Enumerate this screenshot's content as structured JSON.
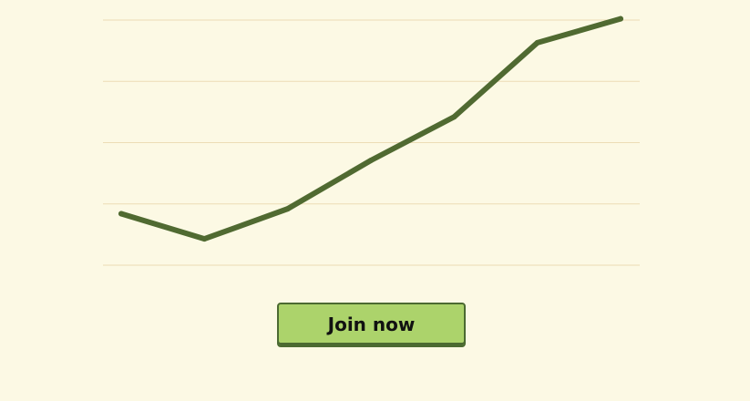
{
  "chart_data": {
    "type": "line",
    "x": [
      1,
      2,
      3,
      4,
      5,
      6,
      7
    ],
    "series": [
      {
        "values": [
          0.84,
          0.43,
          0.92,
          1.71,
          2.42,
          3.63,
          4.02
        ]
      }
    ],
    "ylim": [
      0,
      4
    ],
    "grid": true,
    "line_color": "#506a31",
    "grid_color": "#ecdcb5"
  },
  "cta": {
    "label": "Join now"
  },
  "colors": {
    "background": "#fcf9e4",
    "button_fill": "#acd36b",
    "button_border": "#4b6a31"
  }
}
